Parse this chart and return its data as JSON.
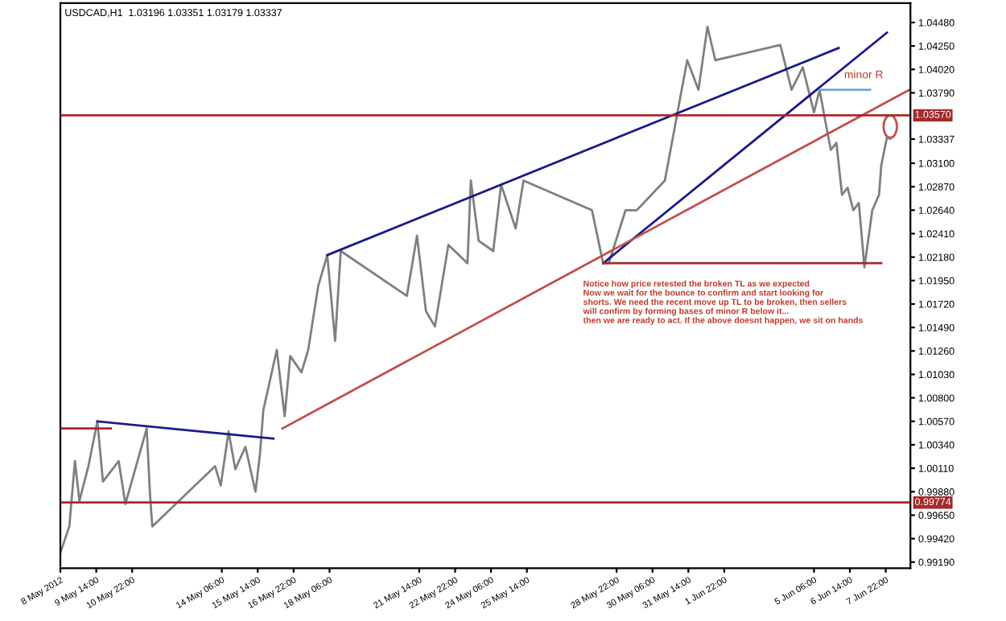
{
  "chart_data": {
    "type": "line",
    "title": "USDCAD,H1  1.03196 1.03351 1.03179 1.03337",
    "annotations": [
      "minor R",
      "Notice how price retested the broken TL as we expected\nNow we wait for the bounce to confirm and start looking for\nshorts. We need the recent move up TL to be broken, then sellers\nwill confirm by forming bases of minor R below it...\nthen we are ready to act. If the above doesnt happen, we sit on hands"
    ],
    "xlim": [
      "2012-05-08T06:00",
      "2012-06-08T20:00"
    ],
    "ylim": [
      0.9913,
      1.0467
    ],
    "xticks": [
      {
        "value": "2012-05-08T06:00",
        "label": "8 May 2012"
      },
      {
        "value": "2012-05-09T14:00",
        "label": "9 May 14:00"
      },
      {
        "value": "2012-05-10T22:00",
        "label": "10 May 22:00"
      },
      {
        "value": "2012-05-14T06:00",
        "label": "14 May 06:00"
      },
      {
        "value": "2012-05-15T14:00",
        "label": "15 May 14:00"
      },
      {
        "value": "2012-05-16T22:00",
        "label": "16 May 22:00"
      },
      {
        "value": "2012-05-18T06:00",
        "label": "18 May 06:00"
      },
      {
        "value": "2012-05-21T14:00",
        "label": "21 May 14:00"
      },
      {
        "value": "2012-05-22T22:00",
        "label": "22 May 22:00"
      },
      {
        "value": "2012-05-24T06:00",
        "label": "24 May 06:00"
      },
      {
        "value": "2012-05-25T14:00",
        "label": "25 May 14:00"
      },
      {
        "value": "2012-05-28T22:00",
        "label": "28 May 22:00"
      },
      {
        "value": "2012-05-30T06:00",
        "label": "30 May 06:00"
      },
      {
        "value": "2012-05-31T14:00",
        "label": "31 May 14:00"
      },
      {
        "value": "2012-06-01T22:00",
        "label": "1 Jun 22:00"
      },
      {
        "value": "2012-06-05T06:00",
        "label": "5 Jun 06:00"
      },
      {
        "value": "2012-06-06T14:00",
        "label": "6 Jun 14:00"
      },
      {
        "value": "2012-06-07T22:00",
        "label": "7 Jun 22:00"
      }
    ],
    "yticks": [
      {
        "value": 1.0448,
        "label": "1.04480"
      },
      {
        "value": 1.0425,
        "label": "1.04250"
      },
      {
        "value": 1.0402,
        "label": "1.04020"
      },
      {
        "value": 1.0379,
        "label": "1.03790"
      },
      {
        "value": 1.03337,
        "label": "1.03337"
      },
      {
        "value": 1.031,
        "label": "1.03100"
      },
      {
        "value": 1.0287,
        "label": "1.02870"
      },
      {
        "value": 1.0264,
        "label": "1.02640"
      },
      {
        "value": 1.0241,
        "label": "1.02410"
      },
      {
        "value": 1.0218,
        "label": "1.02180"
      },
      {
        "value": 1.0195,
        "label": "1.01950"
      },
      {
        "value": 1.0172,
        "label": "1.01720"
      },
      {
        "value": 1.0149,
        "label": "1.01490"
      },
      {
        "value": 1.0126,
        "label": "1.01260"
      },
      {
        "value": 1.0103,
        "label": "1.01030"
      },
      {
        "value": 1.008,
        "label": "1.00800"
      },
      {
        "value": 1.0057,
        "label": "1.00570"
      },
      {
        "value": 1.0034,
        "label": "1.00340"
      },
      {
        "value": 1.0011,
        "label": "1.00110"
      },
      {
        "value": 0.9988,
        "label": "0.99880"
      },
      {
        "value": 0.9965,
        "label": "0.99650"
      },
      {
        "value": 0.9942,
        "label": "0.99420"
      },
      {
        "value": 0.9919,
        "label": "0.99190"
      }
    ],
    "ref_lines": [
      {
        "axis": "y",
        "value": 1.0357,
        "label": "1.03570",
        "color": "#a52a2a"
      },
      {
        "axis": "y",
        "value": 0.99774,
        "label": "0.99774",
        "color": "#a52a2a"
      }
    ],
    "grid": false,
    "legend": false,
    "series": [
      {
        "color": "#7f7f7f",
        "x": [
          "2012-05-08T06:00",
          "2012-05-08T14:00",
          "2012-05-08T19:00",
          "2012-05-08T23:00",
          "2012-05-09T07:00",
          "2012-05-09T15:00",
          "2012-05-09T20:00",
          "2012-05-10T10:00",
          "2012-05-10T16:00",
          "2012-05-11T11:00",
          "2012-05-11T14:00",
          "2012-05-11T16:00",
          "2012-05-14T00:00",
          "2012-05-14T05:00",
          "2012-05-14T12:00",
          "2012-05-14T18:00",
          "2012-05-15T03:00",
          "2012-05-15T12:00",
          "2012-05-15T16:00",
          "2012-05-15T19:00",
          "2012-05-16T07:00",
          "2012-05-16T14:00",
          "2012-05-16T19:00",
          "2012-05-17T05:00",
          "2012-05-17T11:00",
          "2012-05-17T20:00",
          "2012-05-18T04:00",
          "2012-05-18T11:00",
          "2012-05-18T16:00",
          "2012-05-21T03:00",
          "2012-05-21T12:00",
          "2012-05-21T20:00",
          "2012-05-22T04:00",
          "2012-05-22T16:00",
          "2012-05-23T09:00",
          "2012-05-23T12:00",
          "2012-05-23T19:00",
          "2012-05-24T08:00",
          "2012-05-24T15:00",
          "2012-05-25T04:00",
          "2012-05-25T11:00",
          "2012-05-28T00:00",
          "2012-05-28T10:00",
          "2012-05-28T15:00",
          "2012-05-29T06:00",
          "2012-05-29T16:00",
          "2012-05-30T17:00",
          "2012-05-31T03:00",
          "2012-05-31T08:00",
          "2012-05-31T13:00",
          "2012-05-31T23:00",
          "2012-06-01T07:00",
          "2012-06-01T14:00",
          "2012-06-04T00:00",
          "2012-06-04T10:00",
          "2012-06-04T20:00",
          "2012-06-05T06:00",
          "2012-06-05T11:00",
          "2012-06-05T16:00",
          "2012-06-05T21:00",
          "2012-06-06T02:00",
          "2012-06-06T07:00",
          "2012-06-06T12:00",
          "2012-06-06T17:00",
          "2012-06-06T22:00",
          "2012-06-07T03:00",
          "2012-06-07T10:00",
          "2012-06-07T16:00",
          "2012-06-07T18:00",
          "2012-06-07T23:00",
          "2012-06-08T02:00"
        ],
        "values": [
          0.9928,
          0.9954,
          1.0018,
          0.9979,
          1.0013,
          1.0057,
          0.9998,
          1.0018,
          0.9976,
          1.005,
          0.9984,
          0.9954,
          1.0013,
          0.9994,
          1.0047,
          1.001,
          1.0032,
          0.9988,
          1.0025,
          1.0068,
          1.0127,
          1.0062,
          1.0121,
          1.0105,
          1.0127,
          1.019,
          1.022,
          1.0136,
          1.0224,
          1.018,
          1.0239,
          1.0165,
          1.015,
          1.023,
          1.0212,
          1.0293,
          1.0234,
          1.0224,
          1.0289,
          1.0246,
          1.0293,
          1.0264,
          1.0212,
          1.0212,
          1.0264,
          1.0264,
          1.0293,
          1.0352,
          1.0382,
          1.0411,
          1.0382,
          1.0444,
          1.0411,
          1.0426,
          1.0382,
          1.0404,
          1.036,
          1.0382,
          1.0352,
          1.0323,
          1.033,
          1.0279,
          1.0286,
          1.0264,
          1.0271,
          1.0208,
          1.0264,
          1.0279,
          1.0308,
          1.0335,
          1.0334
        ]
      },
      {
        "color": "#a52a2a",
        "x": [
          "2012-05-08T06:00",
          "2012-05-10T03:00"
        ],
        "values": [
          1.005,
          1.005
        ]
      },
      {
        "color": "#1a1a8c",
        "x": [
          "2012-05-09T15:00",
          "2012-05-16T04:00"
        ],
        "values": [
          1.0057,
          1.004
        ]
      },
      {
        "color": "#1a1a8c",
        "x": [
          "2012-05-18T04:00",
          "2012-06-06T04:00"
        ],
        "values": [
          1.022,
          1.0423
        ]
      },
      {
        "color": "#1a1a8c",
        "x": [
          "2012-05-28T10:00",
          "2012-06-07T23:00"
        ],
        "values": [
          1.0212,
          1.0438
        ]
      },
      {
        "color": "#c0504d",
        "x": [
          "2012-05-16T12:00",
          "2012-06-08T19:00"
        ],
        "values": [
          1.005,
          1.0382
        ]
      },
      {
        "color": "#a52a2a",
        "x": [
          "2012-05-28T10:00",
          "2012-06-07T18:00"
        ],
        "values": [
          1.0212,
          1.0212
        ]
      },
      {
        "color": "#6fa8dc",
        "x": [
          "2012-06-05T11:00",
          "2012-06-07T08:00"
        ],
        "values": [
          1.0382,
          1.0382
        ]
      }
    ]
  }
}
